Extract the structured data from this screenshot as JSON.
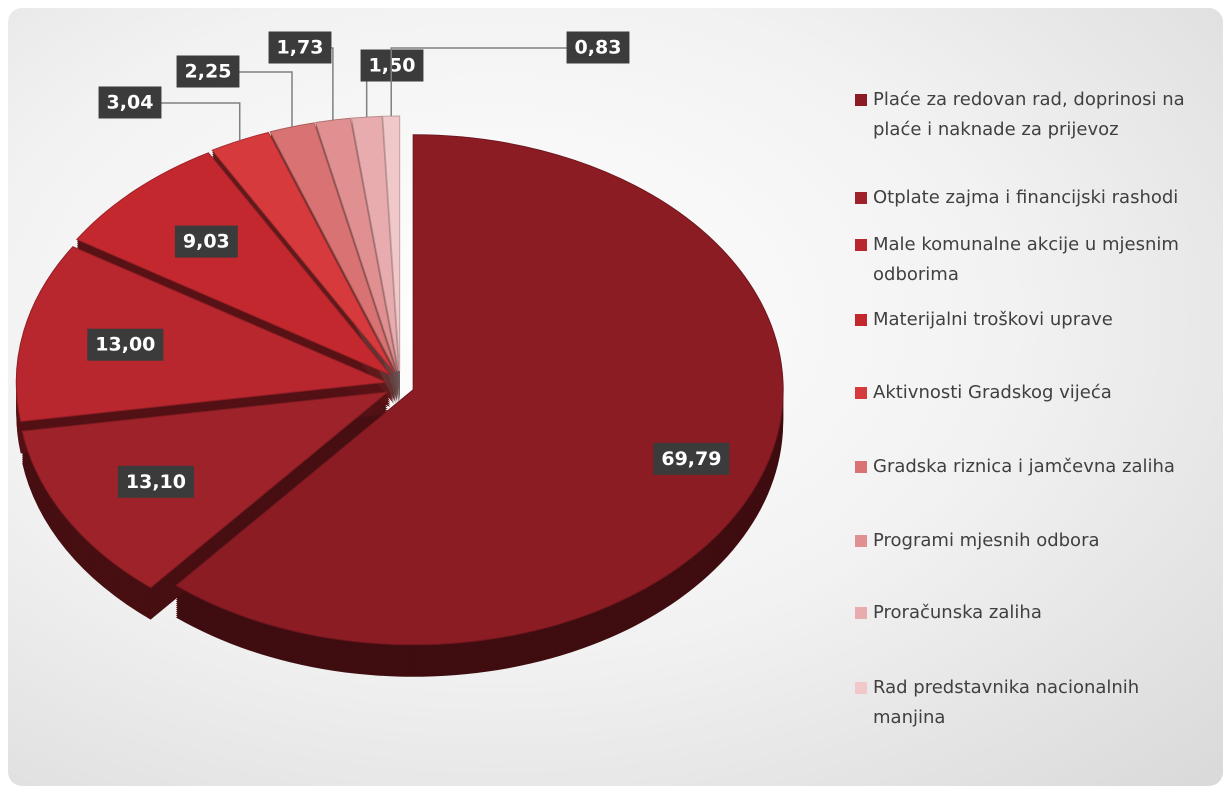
{
  "chart_data": {
    "type": "pie",
    "categories": [
      "Plaće za redovan rad, doprinosi na plaće i naknade za prijevoz",
      "Otplate zajma i financijski rashodi",
      "Male komunalne akcije u mjesnim odborima",
      "Materijalni troškovi uprave",
      "Aktivnosti Gradskog vijeća",
      "Gradska riznica i jamčevna zaliha",
      "Programi mjesnih odbora",
      "Proračunska zaliha",
      "Rad predstavnika nacionalnih manjina"
    ],
    "values": [
      69.79,
      13.1,
      13.0,
      9.03,
      3.04,
      2.25,
      1.73,
      1.5,
      0.83
    ],
    "value_labels": [
      "69,79",
      "13,10",
      "13,00",
      "9,03",
      "3,04",
      "2,25",
      "1,73",
      "1,50",
      "0,83"
    ],
    "colors": [
      "#8b1c24",
      "#9e2229",
      "#b8262e",
      "#c4282f",
      "#d63a3c",
      "#d97272",
      "#e09090",
      "#e8acae",
      "#f0c8c9"
    ],
    "legend": "right"
  }
}
